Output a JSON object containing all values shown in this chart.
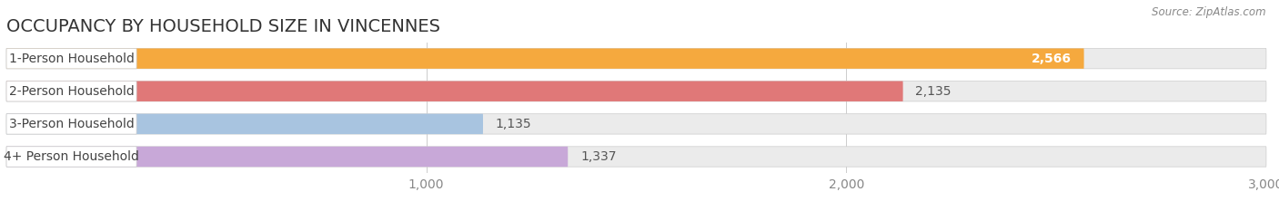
{
  "title": "OCCUPANCY BY HOUSEHOLD SIZE IN VINCENNES",
  "source": "Source: ZipAtlas.com",
  "categories": [
    "1-Person Household",
    "2-Person Household",
    "3-Person Household",
    "4+ Person Household"
  ],
  "values": [
    2566,
    2135,
    1135,
    1337
  ],
  "bar_colors": [
    "#F5A93E",
    "#E07878",
    "#A8C4E0",
    "#C8A8D8"
  ],
  "value_inside": [
    true,
    false,
    false,
    false
  ],
  "xlim": [
    0,
    3000
  ],
  "xticks": [
    1000,
    2000,
    3000
  ],
  "xtick_labels": [
    "1,000",
    "2,000",
    "3,000"
  ],
  "background_color": "#ffffff",
  "bar_bg_color": "#ebebeb",
  "title_fontsize": 14,
  "tick_fontsize": 10,
  "label_fontsize": 10,
  "value_fontsize": 10
}
